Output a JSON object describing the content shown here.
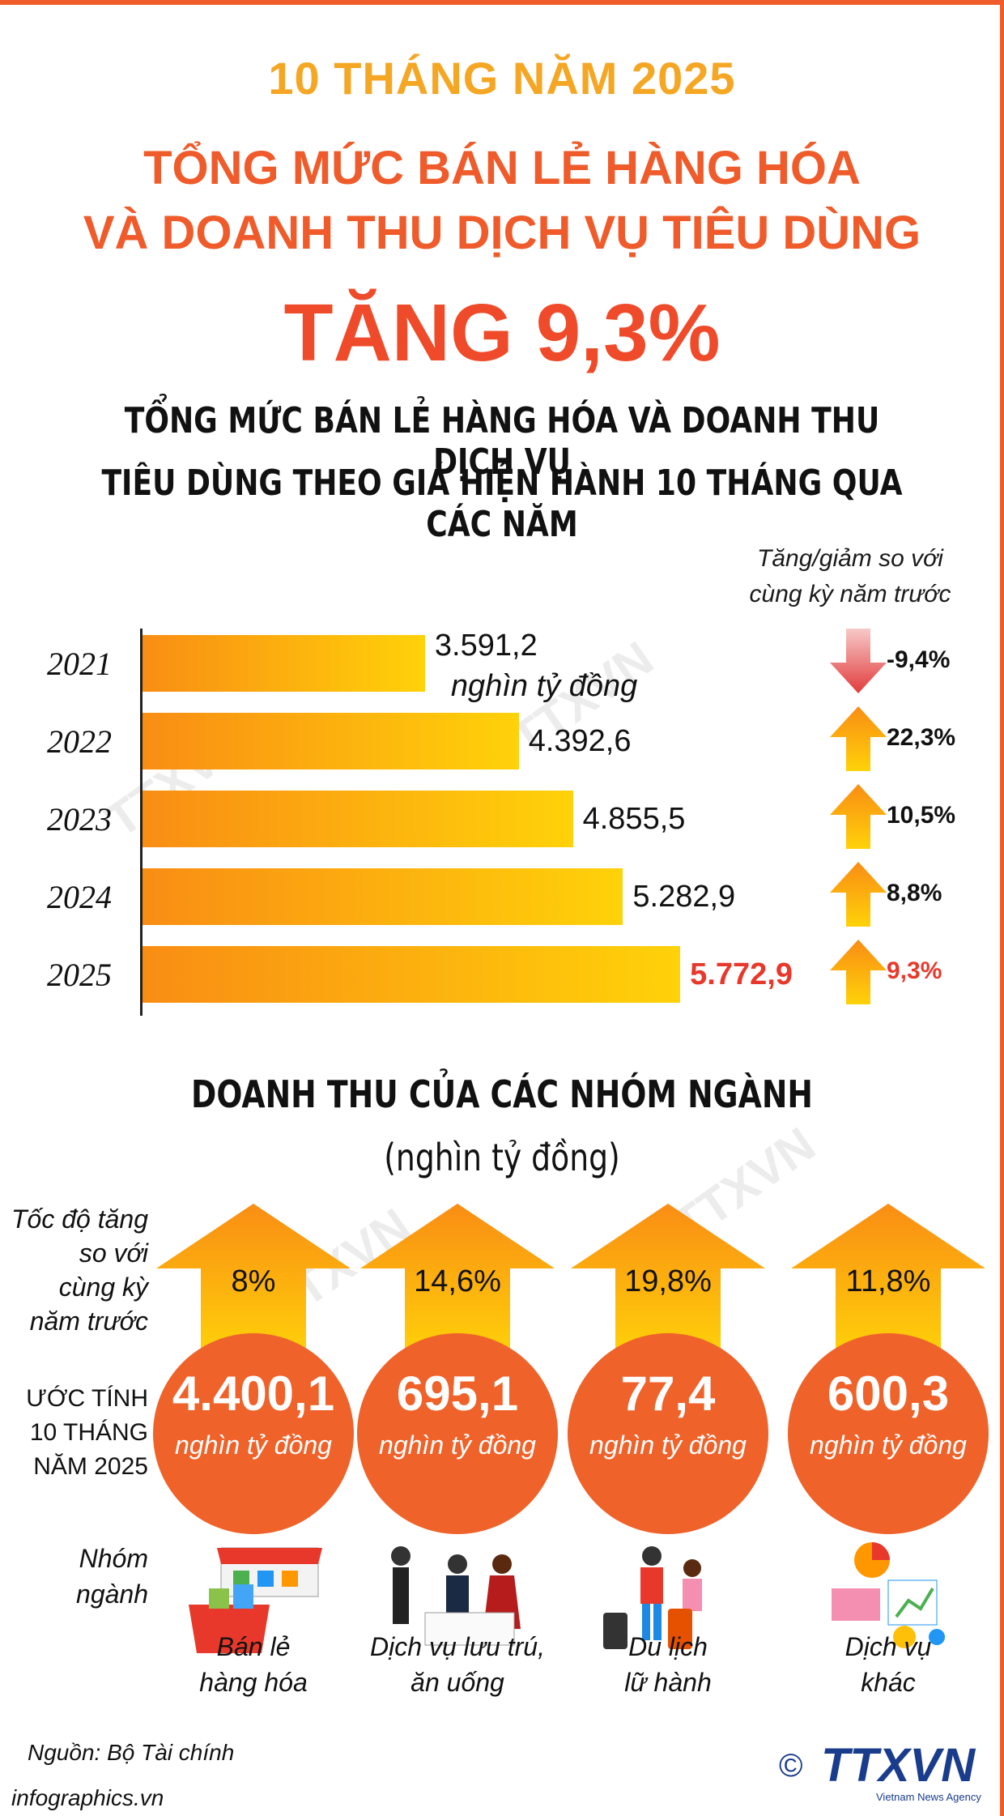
{
  "header": {
    "period": "10 THÁNG NĂM 2025",
    "headline_line1": "TỔNG MỨC BÁN LẺ HÀNG HÓA",
    "headline_line2": "VÀ DOANH THU DỊCH VỤ TIÊU DÙNG",
    "headline_line3": "TĂNG 9,3%",
    "subtitle_line1": "TỔNG MỨC BÁN LẺ HÀNG HÓA VÀ DOANH THU DỊCH VỤ",
    "subtitle_line2": "TIÊU DÙNG THEO GIÁ HIỆN HÀNH 10 THÁNG QUA CÁC NĂM"
  },
  "chart_data": [
    {
      "type": "bar",
      "orientation": "horizontal",
      "title": "TỔNG MỨC BÁN LẺ HÀNG HÓA VÀ DOANH THU DỊCH VỤ TIÊU DÙNG THEO GIÁ HIỆN HÀNH 10 THÁNG QUA CÁC NĂM",
      "categories": [
        "2021",
        "2022",
        "2023",
        "2024",
        "2025"
      ],
      "values": [
        3591.2,
        4392.6,
        4855.5,
        5282.9,
        5772.9
      ],
      "value_labels": [
        "3.591,2",
        "4.392,6",
        "4.855,5",
        "5.282,9",
        "5.772,9"
      ],
      "unit": "nghìn tỷ đồng",
      "change_header_line1": "Tăng/giảm so với",
      "change_header_line2": "cùng kỳ năm trước",
      "change_values": [
        -9.4,
        22.3,
        10.5,
        8.8,
        9.3
      ],
      "change_labels": [
        "-9,4%",
        "22,3%",
        "10,5%",
        "8,8%",
        "9,3%"
      ],
      "highlight_color": "#e8382b",
      "bar_colors": [
        "#f98d14",
        "#ffd209"
      ]
    },
    {
      "type": "table",
      "title": "DOANH THU CỦA CÁC NHÓM NGÀNH",
      "unit": "(nghìn tỷ đồng)",
      "row_labels": {
        "growth": [
          "Tốc độ tăng",
          "so với",
          "cùng kỳ",
          "năm trước"
        ],
        "estimate": [
          "ƯỚC TÍNH",
          "10 THÁNG",
          "NĂM 2025"
        ],
        "group": [
          "Nhóm",
          "ngành"
        ]
      },
      "groups": [
        {
          "name_line1": "Bán lẻ",
          "name_line2": "hàng hóa",
          "growth_pct": 8,
          "growth_label": "8%",
          "amount": 4400.1,
          "amount_label": "4.400,1",
          "amount_unit": "nghìn tỷ đồng",
          "icon": "shopping-basket-icon"
        },
        {
          "name_line1": "Dịch vụ lưu trú,",
          "name_line2": "ăn uống",
          "growth_pct": 14.6,
          "growth_label": "14,6%",
          "amount": 695.1,
          "amount_label": "695,1",
          "amount_unit": "nghìn tỷ đồng",
          "icon": "restaurant-dining-icon"
        },
        {
          "name_line1": "Du lịch",
          "name_line2": "lữ hành",
          "growth_pct": 19.8,
          "growth_label": "19,8%",
          "amount": 77.4,
          "amount_label": "77,4",
          "amount_unit": "nghìn tỷ đồng",
          "icon": "travelers-luggage-icon"
        },
        {
          "name_line1": "Dịch vụ",
          "name_line2": "khác",
          "growth_pct": 11.8,
          "growth_label": "11,8%",
          "amount": 600.3,
          "amount_label": "600,3",
          "amount_unit": "nghìn tỷ đồng",
          "icon": "charts-analytics-icon"
        }
      ],
      "circle_color": "#ef622a",
      "arrow_colors": [
        "#f98d14",
        "#ffd209"
      ]
    }
  ],
  "footer": {
    "source": "Nguồn: Bộ Tài chính",
    "site": "infographics.vn",
    "logo_text": "TTXVN",
    "logo_tagline": "Vietnam News Agency",
    "copyright": "©"
  }
}
